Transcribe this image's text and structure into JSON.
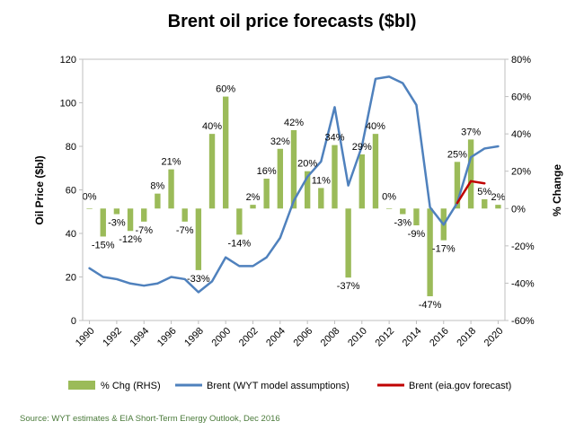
{
  "chart_data": {
    "type": "bar+line",
    "title": "Brent oil price forecasts ($bl)",
    "ylabel_left": "Oil Price ($bl)",
    "ylabel_right": "% Change",
    "ylim_left": [
      0,
      120
    ],
    "yticks_left": [
      0,
      20,
      40,
      60,
      80,
      100,
      120
    ],
    "ylim_right": [
      -60,
      80
    ],
    "yticks_right": [
      "-60%",
      "-40%",
      "-20%",
      "0%",
      "20%",
      "40%",
      "60%",
      "80%"
    ],
    "xlim": [
      1990,
      2020
    ],
    "xticks": [
      "1990",
      "1992",
      "1994",
      "1996",
      "1998",
      "2000",
      "2002",
      "2004",
      "2006",
      "2008",
      "2010",
      "2012",
      "2014",
      "2016",
      "2018",
      "2020"
    ],
    "grid": false,
    "legend_position": "bottom",
    "colors": {
      "bars": "#9bbb59",
      "wyt": "#4f81bd",
      "eia": "#c00000"
    },
    "series": [
      {
        "name": "% Chg (RHS)",
        "type": "bar",
        "axis": "right",
        "x": [
          1990,
          1991,
          1992,
          1993,
          1994,
          1995,
          1996,
          1997,
          1998,
          1999,
          2000,
          2001,
          2002,
          2003,
          2004,
          2005,
          2006,
          2007,
          2008,
          2009,
          2010,
          2011,
          2012,
          2013,
          2014,
          2015,
          2016,
          2017,
          2018,
          2019,
          2020
        ],
        "values": [
          0,
          -15,
          -3,
          -12,
          -7,
          8,
          21,
          -7,
          -33,
          40,
          60,
          -14,
          2,
          16,
          32,
          42,
          20,
          11,
          34,
          -37,
          29,
          40,
          0,
          -3,
          -9,
          -47,
          -17,
          25,
          37,
          5,
          2
        ],
        "labels": [
          "0%",
          "-15%",
          "-3%",
          "-12%",
          "-7%",
          "8%",
          "21%",
          "-7%",
          "-33%",
          "40%",
          "60%",
          "-14%",
          "2%",
          "16%",
          "32%",
          "42%",
          "20%",
          "11%",
          "34%",
          "-37%",
          "29%",
          "40%",
          "0%",
          "-3%",
          "-9%",
          "-47%",
          "-17%",
          "25%",
          "37%",
          "5%",
          "2%"
        ]
      },
      {
        "name": "Brent (WYT model assumptions)",
        "type": "line",
        "axis": "left",
        "x": [
          1990,
          1991,
          1992,
          1993,
          1994,
          1995,
          1996,
          1997,
          1998,
          1999,
          2000,
          2001,
          2002,
          2003,
          2004,
          2005,
          2006,
          2007,
          2008,
          2009,
          2010,
          2011,
          2012,
          2013,
          2014,
          2015,
          2016,
          2017,
          2018,
          2019,
          2020
        ],
        "values": [
          24,
          20,
          19,
          17,
          16,
          17,
          20,
          19,
          13,
          18,
          29,
          25,
          25,
          29,
          38,
          55,
          66,
          73,
          98,
          62,
          80,
          111,
          112,
          109,
          99,
          52,
          44,
          54,
          75,
          79,
          80
        ]
      },
      {
        "name": "Brent (eia.gov forecast)",
        "type": "line",
        "axis": "left",
        "x": [
          2017,
          2018,
          2019
        ],
        "values": [
          54,
          64,
          63
        ]
      }
    ]
  },
  "source": "Source: WYT estimates & EIA Short-Term Energy Outlook, Dec 2016"
}
